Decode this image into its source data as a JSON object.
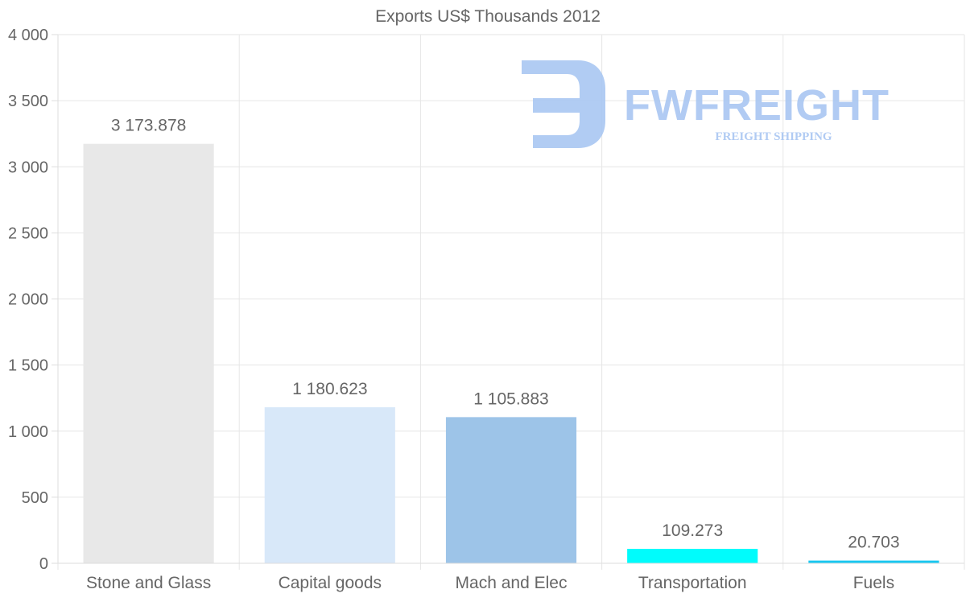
{
  "chart_data": {
    "type": "bar",
    "title": "Exports US$ Thousands 2012",
    "xlabel": "",
    "ylabel": "",
    "ylim": [
      0,
      4000
    ],
    "yticks": [
      0,
      500,
      1000,
      1500,
      2000,
      2500,
      3000,
      3500,
      4000
    ],
    "ytick_labels": [
      "0",
      "500",
      "1 000",
      "1 500",
      "2 000",
      "2 500",
      "3 000",
      "3 500",
      "4 000"
    ],
    "grid": true,
    "legend": "none",
    "categories": [
      "Stone and Glass",
      "Capital goods",
      "Mach and Elec",
      "Transportation",
      "Fuels"
    ],
    "values": [
      3173.878,
      1180.623,
      1105.883,
      109.273,
      20.703
    ],
    "value_labels": [
      "3 173.878",
      "1 180.623",
      "1 105.883",
      "109.273",
      "20.703"
    ],
    "colors": [
      "#e8e8e8",
      "#d8e8f9",
      "#9dc4e8",
      "#00fcfc",
      "#18c7f0"
    ]
  },
  "watermark": {
    "brand": "FWFREIGHT",
    "tagline": "FREIGHT SHIPPING",
    "color": "#a9c6f2"
  }
}
